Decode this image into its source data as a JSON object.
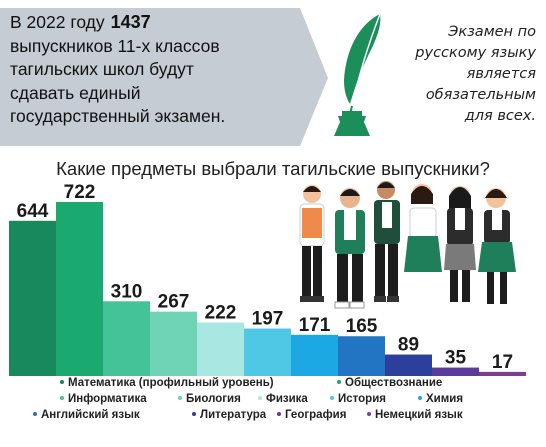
{
  "intro": {
    "line1": "В 2022 году",
    "count": "1437",
    "line2": "выпускников 11-х классов",
    "line3": "тагильских школ будут",
    "line4": "сдавать единый",
    "line5": "государственный экзамен."
  },
  "note": {
    "lines": [
      "Экзамен по",
      "русскому языку",
      "является",
      "обязательным",
      "для всех."
    ]
  },
  "chart_data": {
    "type": "bar",
    "title": "Какие предметы выбрали тагильские выпускники?",
    "categories": [
      "Математика (профильный уровень)",
      "Обществознание",
      "Информатика",
      "Биология",
      "Физика",
      "История",
      "Химия",
      "Английский язык",
      "Литература",
      "География",
      "Немецкий язык"
    ],
    "values": [
      644,
      722,
      310,
      267,
      222,
      197,
      171,
      165,
      89,
      35,
      17
    ],
    "colors": [
      "#17895c",
      "#1aa96e",
      "#45c398",
      "#6fd3b5",
      "#a9e7e2",
      "#4fc8e6",
      "#1ca9e3",
      "#2275c2",
      "#2d3f9c",
      "#5a3c9b",
      "#7d3e8f"
    ],
    "ylim": [
      0,
      722
    ],
    "grid": false,
    "legend_position": "bottom"
  },
  "legend_colors": {
    "Математика (профильный уровень)": "#17895c",
    "Обществознание": "#1aa96e",
    "Информатика": "#45c398",
    "Биология": "#6fd3b5",
    "Физика": "#a9e7e2",
    "История": "#4fc8e6",
    "Химия": "#1ca9e3",
    "Английский язык": "#2275c2",
    "Литература": "#2d3f9c",
    "География": "#5a3c9b",
    "Немецкий язык": "#7d3e8f"
  },
  "colors": {
    "banner": "#c6ccd3",
    "quill": "#1c8e5a"
  }
}
